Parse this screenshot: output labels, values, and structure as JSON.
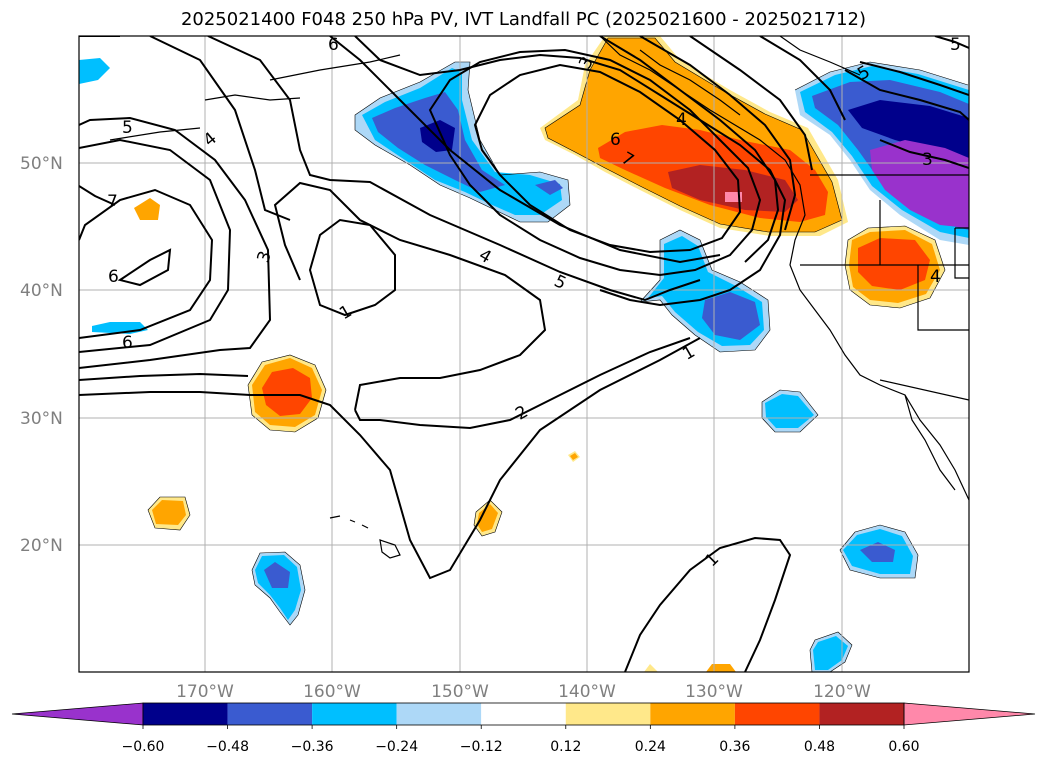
{
  "title": "2025021400 F048 250 hPa PV, IVT Landfall PC (2025021600 - 2025021712)",
  "axes": {
    "lat_ticks": [
      {
        "label": "50°N",
        "value": 50
      },
      {
        "label": "40°N",
        "value": 40
      },
      {
        "label": "30°N",
        "value": 30
      },
      {
        "label": "20°N",
        "value": 20
      }
    ],
    "lon_ticks": [
      {
        "label": "170°W",
        "value": -170
      },
      {
        "label": "160°W",
        "value": -160
      },
      {
        "label": "150°W",
        "value": -150
      },
      {
        "label": "140°W",
        "value": -140
      },
      {
        "label": "130°W",
        "value": -130
      },
      {
        "label": "120°W",
        "value": -120
      }
    ],
    "lon_range": [
      -180,
      -110
    ],
    "lat_range": [
      10,
      60
    ],
    "grid": true
  },
  "colorbar": {
    "levels": [
      -0.6,
      -0.48,
      -0.36,
      -0.24,
      -0.12,
      0.12,
      0.24,
      0.36,
      0.48,
      0.6
    ],
    "labels": [
      "−0.60",
      "−0.48",
      "−0.36",
      "−0.24",
      "−0.12",
      "0.12",
      "0.24",
      "0.36",
      "0.48",
      "0.60"
    ],
    "colors": [
      "#9932cc",
      "#00008b",
      "#3a5bd0",
      "#00bfff",
      "#add8f7",
      "#ffffff",
      "#ffe88a",
      "#ffa500",
      "#ff4500",
      "#b22222",
      "#ff88aa"
    ],
    "extend": "both"
  },
  "contour_labels": [
    "5",
    "4",
    "3",
    "2",
    "1",
    "6",
    "7"
  ],
  "palette": {
    "grid": "#b0b0b0",
    "frame": "#000000",
    "coast": "#000000"
  }
}
